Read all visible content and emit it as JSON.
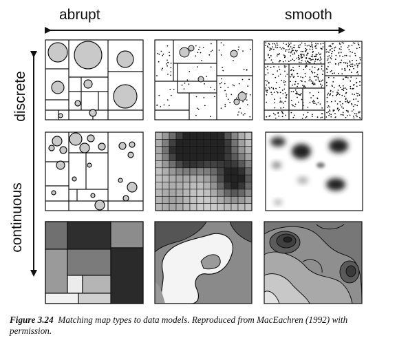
{
  "axes": {
    "horizontal_left": "abrupt",
    "horizontal_right": "smooth",
    "vertical_top": "discrete",
    "vertical_bottom": "continuous"
  },
  "caption": {
    "label": "Figure 3.24",
    "text": "Matching map types to data models.  Reproduced from MacEachren (1992) with permission."
  },
  "colors": {
    "ink": "#111111",
    "circle_fill": "#c9c9c9",
    "dark": "#333333",
    "mid": "#8a8a8a",
    "light": "#d8d8d8"
  },
  "panels": [
    {
      "row": "discrete",
      "col": "abrupt",
      "icon": "proportional-circles-in-regions"
    },
    {
      "row": "discrete",
      "col": "middle",
      "icon": "dot-density-in-regions"
    },
    {
      "row": "discrete",
      "col": "smooth",
      "icon": "dense-dot-map"
    },
    {
      "row": "middle",
      "col": "abrupt",
      "icon": "small-circles-in-regions"
    },
    {
      "row": "middle",
      "col": "middle",
      "icon": "gridded-shaded-cells"
    },
    {
      "row": "middle",
      "col": "smooth",
      "icon": "blurred-density-blobs"
    },
    {
      "row": "continuous",
      "col": "abrupt",
      "icon": "choropleth-regions"
    },
    {
      "row": "continuous",
      "col": "middle",
      "icon": "shaded-zones"
    },
    {
      "row": "continuous",
      "col": "smooth",
      "icon": "isoline-contours"
    }
  ]
}
